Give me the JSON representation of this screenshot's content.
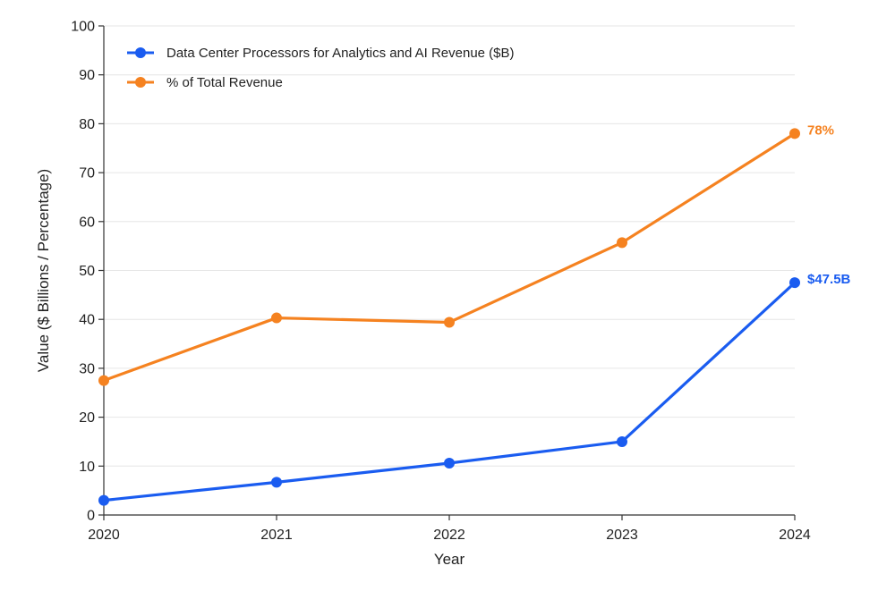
{
  "chart_data": {
    "type": "line",
    "x": [
      "2020",
      "2021",
      "2022",
      "2023",
      "2024"
    ],
    "xlabel": "Year",
    "ylabel": "Value ($ Billions / Percentage)",
    "ylim": [
      0,
      100
    ],
    "yticks": [
      "0",
      "10",
      "20",
      "30",
      "40",
      "50",
      "60",
      "70",
      "80",
      "90",
      "100"
    ],
    "grid": "horizontal",
    "legend_position": "top-left",
    "series": [
      {
        "name": "Data Center Processors for Analytics and AI Revenue ($B)",
        "color": "#1a5cf0",
        "values": [
          3.0,
          6.7,
          10.6,
          15.0,
          47.5
        ],
        "end_label": "$47.5B"
      },
      {
        "name": "% of Total Revenue",
        "color": "#f58220",
        "values": [
          27.5,
          40.3,
          39.4,
          55.7,
          78.0
        ],
        "end_label": "78%"
      }
    ]
  }
}
